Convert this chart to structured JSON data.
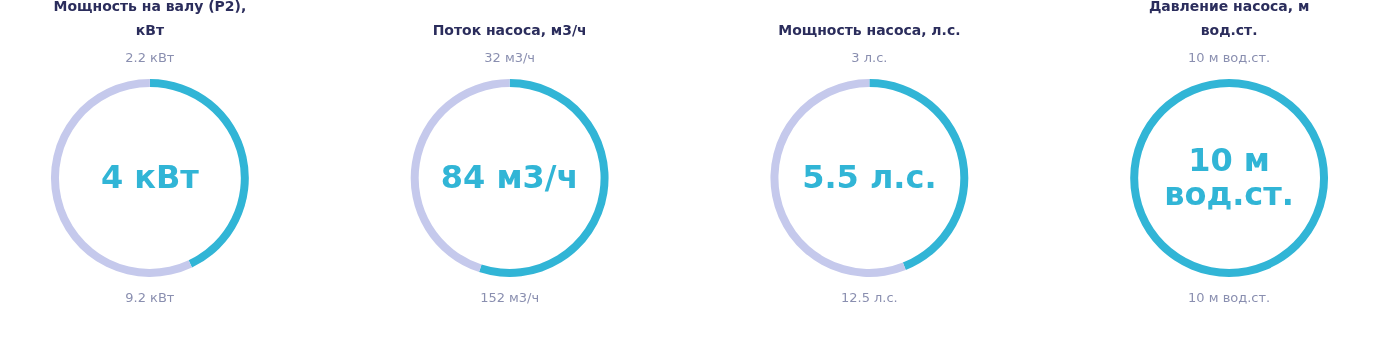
{
  "chart_data": [
    {
      "type": "donut",
      "title": "Мощность на валу (P2), кВт",
      "categories": [
        null,
        null
      ],
      "values": [
        43,
        57
      ],
      "colors": [
        "#31b5d6",
        "#c5c9ec"
      ],
      "annotations": [
        "2.2 кВт",
        "9.2 кВт",
        "4 кВт"
      ]
    },
    {
      "type": "donut",
      "title": "Поток насоса, м3/ч",
      "categories": [
        null,
        null
      ],
      "values": [
        55,
        45
      ],
      "colors": [
        "#31b5d6",
        "#c5c9ec"
      ],
      "annotations": [
        "32 м3/ч",
        "152 м3/ч",
        "84 м3/ч"
      ]
    },
    {
      "type": "donut",
      "title": "Мощность насоса, л.с.",
      "categories": [
        null,
        null
      ],
      "values": [
        44,
        56
      ],
      "colors": [
        "#31b5d6",
        "#c5c9ec"
      ],
      "annotations": [
        "3 л.с.",
        "12.5 л.с.",
        "5.5 л.с."
      ]
    },
    {
      "type": "donut",
      "title": "Давление насоса, м вод.ст.",
      "categories": [
        null
      ],
      "values": [
        100
      ],
      "colors": [
        "#31b5d6"
      ],
      "annotations": [
        "10 м вод.ст.",
        "10 м вод.ст.",
        "10 м вод.ст."
      ]
    }
  ]
}
